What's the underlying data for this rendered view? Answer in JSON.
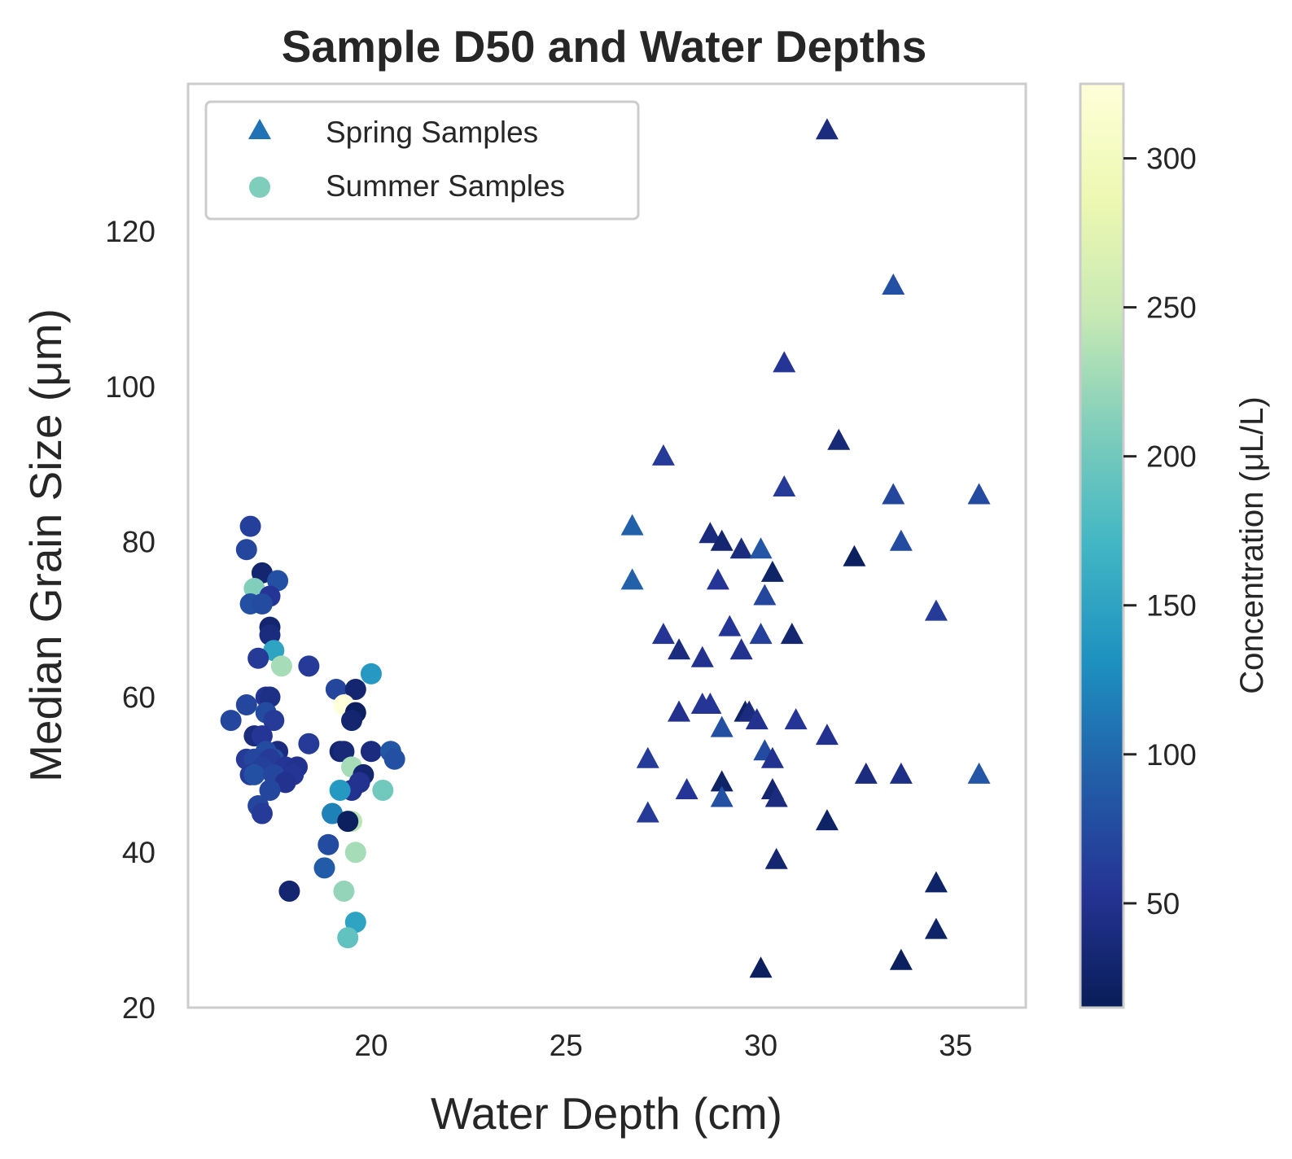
{
  "chart_data": {
    "type": "scatter",
    "title": "Sample D50 and Water Depths",
    "xlabel": "Water Depth (cm)",
    "ylabel": "Median Grain Size (μm)",
    "xlim": [
      15.3,
      36.8
    ],
    "ylim": [
      20,
      139
    ],
    "xticks": [
      "20",
      "25",
      "30",
      "35"
    ],
    "yticks": [
      "20",
      "40",
      "60",
      "80",
      "100",
      "120"
    ],
    "grid": false,
    "legend_position": "top-left",
    "colorbar": {
      "label": "Concentration (μL/L)",
      "colormap": "YlGnBu",
      "range": [
        15,
        325
      ],
      "ticks": [
        "50",
        "100",
        "150",
        "200",
        "250",
        "300"
      ],
      "colors": [
        "#081d58",
        "#253494",
        "#225ea8",
        "#1d91c0",
        "#41b6c4",
        "#7fcdbb",
        "#c7e9b4",
        "#edf8b1",
        "#ffffd9"
      ]
    },
    "series": [
      {
        "name": "Spring Samples",
        "marker": "triangle",
        "legend_color": "#2171b5",
        "points": [
          [
            31.7,
            133,
            40
          ],
          [
            33.4,
            113,
            80
          ],
          [
            30.6,
            103,
            55
          ],
          [
            32.0,
            93,
            35
          ],
          [
            27.5,
            91,
            60
          ],
          [
            30.6,
            87,
            60
          ],
          [
            33.4,
            86,
            70
          ],
          [
            35.6,
            86,
            75
          ],
          [
            26.7,
            82,
            95
          ],
          [
            28.7,
            81,
            40
          ],
          [
            29.0,
            80,
            30
          ],
          [
            29.5,
            79,
            40
          ],
          [
            30.0,
            79,
            85
          ],
          [
            33.6,
            80,
            75
          ],
          [
            32.4,
            78,
            20
          ],
          [
            30.3,
            76,
            25
          ],
          [
            28.9,
            75,
            55
          ],
          [
            30.1,
            73,
            70
          ],
          [
            26.7,
            75,
            95
          ],
          [
            34.5,
            71,
            60
          ],
          [
            29.2,
            69,
            55
          ],
          [
            27.5,
            68,
            55
          ],
          [
            30.0,
            68,
            65
          ],
          [
            30.8,
            68,
            30
          ],
          [
            27.9,
            66,
            40
          ],
          [
            28.5,
            65,
            50
          ],
          [
            29.5,
            66,
            50
          ],
          [
            28.5,
            59,
            55
          ],
          [
            28.7,
            59,
            55
          ],
          [
            27.9,
            58,
            50
          ],
          [
            29.6,
            58,
            25
          ],
          [
            29.7,
            58,
            40
          ],
          [
            29.9,
            57,
            50
          ],
          [
            30.9,
            57,
            55
          ],
          [
            29.0,
            56,
            80
          ],
          [
            31.7,
            55,
            50
          ],
          [
            30.1,
            53,
            75
          ],
          [
            30.3,
            52,
            50
          ],
          [
            27.1,
            52,
            60
          ],
          [
            32.7,
            50,
            40
          ],
          [
            33.6,
            50,
            45
          ],
          [
            35.6,
            50,
            85
          ],
          [
            29.0,
            49,
            25
          ],
          [
            30.3,
            48,
            30
          ],
          [
            28.1,
            48,
            55
          ],
          [
            29.0,
            47,
            80
          ],
          [
            30.4,
            47,
            40
          ],
          [
            27.1,
            45,
            60
          ],
          [
            31.7,
            44,
            25
          ],
          [
            30.4,
            39,
            30
          ],
          [
            34.5,
            36,
            25
          ],
          [
            34.5,
            30,
            25
          ],
          [
            33.6,
            26,
            20
          ],
          [
            30.0,
            25,
            20
          ]
        ]
      },
      {
        "name": "Summer Samples",
        "marker": "circle",
        "legend_color": "#7fcdbb",
        "points": [
          [
            16.9,
            82,
            65
          ],
          [
            16.8,
            79,
            70
          ],
          [
            17.2,
            76,
            30
          ],
          [
            17.6,
            75,
            80
          ],
          [
            17.0,
            74,
            210
          ],
          [
            17.4,
            73,
            55
          ],
          [
            16.9,
            72,
            80
          ],
          [
            17.2,
            72,
            75
          ],
          [
            17.4,
            69,
            30
          ],
          [
            17.4,
            68,
            40
          ],
          [
            17.5,
            66,
            150
          ],
          [
            17.1,
            65,
            60
          ],
          [
            17.7,
            64,
            230
          ],
          [
            18.4,
            64,
            60
          ],
          [
            20.0,
            63,
            140
          ],
          [
            19.1,
            61,
            70
          ],
          [
            19.6,
            61,
            30
          ],
          [
            17.3,
            60,
            55
          ],
          [
            17.4,
            60,
            45
          ],
          [
            16.8,
            59,
            70
          ],
          [
            19.3,
            59,
            325
          ],
          [
            19.6,
            58,
            20
          ],
          [
            17.3,
            58,
            75
          ],
          [
            19.5,
            57,
            30
          ],
          [
            17.5,
            57,
            60
          ],
          [
            16.4,
            57,
            70
          ],
          [
            17.0,
            55,
            40
          ],
          [
            17.2,
            55,
            55
          ],
          [
            18.4,
            54,
            60
          ],
          [
            17.6,
            53,
            40
          ],
          [
            17.3,
            53,
            75
          ],
          [
            19.2,
            53,
            30
          ],
          [
            19.3,
            53,
            35
          ],
          [
            20.0,
            53,
            40
          ],
          [
            20.5,
            53,
            85
          ],
          [
            20.6,
            52,
            80
          ],
          [
            17.5,
            52,
            80
          ],
          [
            16.8,
            52,
            60
          ],
          [
            17.0,
            52,
            70
          ],
          [
            17.4,
            52,
            60
          ],
          [
            17.8,
            51,
            55
          ],
          [
            18.1,
            51,
            50
          ],
          [
            17.2,
            51,
            65
          ],
          [
            16.9,
            50,
            60
          ],
          [
            17.0,
            50,
            80
          ],
          [
            19.5,
            51,
            230
          ],
          [
            19.8,
            50,
            30
          ],
          [
            17.5,
            50,
            70
          ],
          [
            18.0,
            50,
            55
          ],
          [
            17.8,
            49,
            50
          ],
          [
            19.7,
            49,
            50
          ],
          [
            19.5,
            48,
            50
          ],
          [
            17.4,
            48,
            70
          ],
          [
            19.2,
            48,
            140
          ],
          [
            20.3,
            48,
            200
          ],
          [
            17.1,
            46,
            70
          ],
          [
            17.2,
            45,
            60
          ],
          [
            19.0,
            45,
            120
          ],
          [
            19.5,
            44,
            240
          ],
          [
            19.4,
            44,
            20
          ],
          [
            18.9,
            41,
            75
          ],
          [
            19.6,
            40,
            230
          ],
          [
            18.8,
            38,
            90
          ],
          [
            17.9,
            35,
            30
          ],
          [
            19.3,
            35,
            220
          ],
          [
            19.6,
            31,
            150
          ],
          [
            19.4,
            29,
            190
          ]
        ]
      }
    ]
  }
}
